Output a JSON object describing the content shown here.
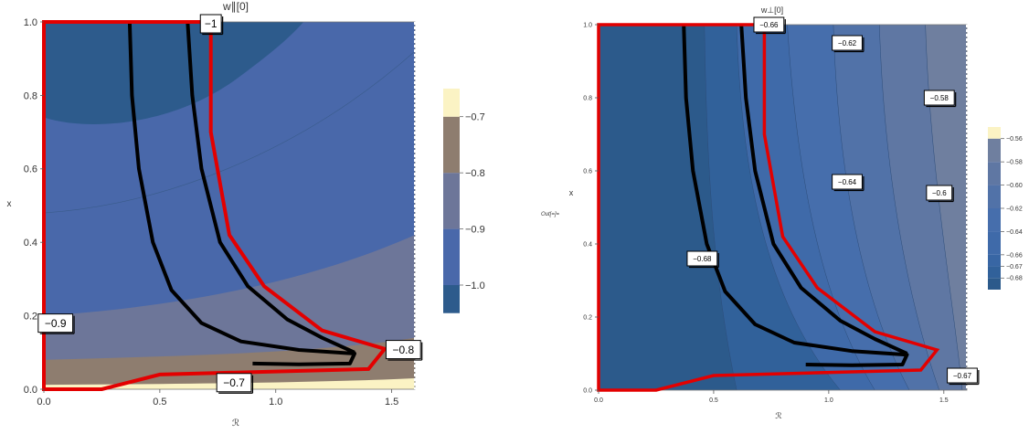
{
  "out_label": "Out[=]=",
  "chart_data": [
    {
      "type": "heatmap",
      "title": "w∥[0]",
      "xlabel": "ℛ",
      "ylabel": "x",
      "xlim": [
        0,
        1.6
      ],
      "ylim": [
        0,
        1.0
      ],
      "xticks": [
        "0.0",
        "0.5",
        "1.0",
        "1.5"
      ],
      "xtick_values": [
        0,
        0.5,
        1.0,
        1.5
      ],
      "yticks": [
        "0.0",
        "0.2",
        "0.4",
        "0.6",
        "0.8",
        "1.0"
      ],
      "ytick_values": [
        0,
        0.2,
        0.4,
        0.6,
        0.8,
        1.0
      ],
      "bands": [
        {
          "from": -1.05,
          "to": -1.0,
          "color": "#2d5b8c"
        },
        {
          "from": -1.0,
          "to": -0.9,
          "color": "#4968aa"
        },
        {
          "from": -0.9,
          "to": -0.8,
          "color": "#6d7699"
        },
        {
          "from": -0.8,
          "to": -0.7,
          "color": "#8e7d6f"
        },
        {
          "from": -0.7,
          "to": -0.65,
          "color": "#fbf3c4"
        }
      ],
      "legend_ticks": [
        "-0.7",
        "-0.8",
        "-0.9",
        "-1.0"
      ],
      "legend_tick_values": [
        -0.7,
        -0.8,
        -0.9,
        -1.0
      ],
      "legend_range": [
        -1.07,
        -0.65
      ],
      "contour_labels": [
        {
          "text": "-1",
          "R": 0.72,
          "x": 0.995
        },
        {
          "text": "-0.9",
          "R": 0.05,
          "x": 0.18
        },
        {
          "text": "-0.8",
          "R": 1.55,
          "x": 0.108
        },
        {
          "text": "-0.7",
          "R": 0.82,
          "x": 0.018
        }
      ],
      "red_region": [
        [
          0,
          0
        ],
        [
          0,
          1.0
        ],
        [
          0.72,
          1.0
        ],
        [
          0.72,
          0.7
        ],
        [
          0.8,
          0.42
        ],
        [
          0.95,
          0.28
        ],
        [
          1.2,
          0.16
        ],
        [
          1.47,
          0.11
        ],
        [
          1.4,
          0.055
        ],
        [
          0.5,
          0.04
        ],
        [
          0.25,
          0.0
        ]
      ],
      "black_curves": [
        [
          [
            0.37,
            1.0
          ],
          [
            0.38,
            0.8
          ],
          [
            0.41,
            0.6
          ],
          [
            0.47,
            0.4
          ],
          [
            0.55,
            0.27
          ],
          [
            0.68,
            0.18
          ],
          [
            0.85,
            0.13
          ],
          [
            1.1,
            0.107
          ],
          [
            1.34,
            0.097
          ],
          [
            1.32,
            0.07
          ],
          [
            1.1,
            0.068
          ],
          [
            0.9,
            0.07
          ]
        ],
        [
          [
            0.62,
            1.0
          ],
          [
            0.64,
            0.8
          ],
          [
            0.68,
            0.6
          ],
          [
            0.76,
            0.4
          ],
          [
            0.88,
            0.28
          ],
          [
            1.05,
            0.19
          ],
          [
            1.2,
            0.14
          ],
          [
            1.34,
            0.1
          ]
        ]
      ]
    },
    {
      "type": "heatmap",
      "title": "w⊥[0]",
      "xlabel": "ℛ",
      "ylabel": "x",
      "xlim": [
        0,
        1.6
      ],
      "ylim": [
        0,
        1.0
      ],
      "xticks": [
        "0.0",
        "0.5",
        "1.0",
        "1.5"
      ],
      "xtick_values": [
        0,
        0.5,
        1.0,
        1.5
      ],
      "yticks": [
        "0.0",
        "0.2",
        "0.4",
        "0.6",
        "0.8",
        "1.0"
      ],
      "ytick_values": [
        0,
        0.2,
        0.4,
        0.6,
        0.8,
        1.0
      ],
      "bands": [
        {
          "from": -0.69,
          "to": -0.68,
          "color": "#2c5a8b"
        },
        {
          "from": -0.68,
          "to": -0.67,
          "color": "#31619a"
        },
        {
          "from": -0.67,
          "to": -0.66,
          "color": "#3866a4"
        },
        {
          "from": -0.66,
          "to": -0.64,
          "color": "#3f6aa9"
        },
        {
          "from": -0.64,
          "to": -0.62,
          "color": "#466eac"
        },
        {
          "from": -0.62,
          "to": -0.6,
          "color": "#5172a8"
        },
        {
          "from": -0.6,
          "to": -0.58,
          "color": "#5f77a3"
        },
        {
          "from": -0.58,
          "to": -0.56,
          "color": "#6f7f9f"
        },
        {
          "from": -0.56,
          "to": -0.55,
          "color": "#fbf3c4"
        }
      ],
      "legend_ticks": [
        "-0.56",
        "-0.58",
        "-0.60",
        "-0.62",
        "-0.64",
        "-0.66",
        "-0.67",
        "-0.68"
      ],
      "legend_tick_values": [
        -0.56,
        -0.58,
        -0.6,
        -0.62,
        -0.64,
        -0.66,
        -0.67,
        -0.68
      ],
      "legend_range": [
        -0.69,
        -0.55
      ],
      "contour_labels": [
        {
          "text": "-0.66",
          "R": 0.74,
          "x": 1.0
        },
        {
          "text": "-0.62",
          "R": 1.08,
          "x": 0.95
        },
        {
          "text": "-0.58",
          "R": 1.48,
          "x": 0.8
        },
        {
          "text": "-0.64",
          "R": 1.08,
          "x": 0.57
        },
        {
          "text": "-0.6",
          "R": 1.48,
          "x": 0.54
        },
        {
          "text": "-0.68",
          "R": 0.45,
          "x": 0.36
        },
        {
          "text": "-0.67",
          "R": 1.58,
          "x": 0.04
        }
      ],
      "red_region": [
        [
          0,
          0
        ],
        [
          0,
          1.0
        ],
        [
          0.72,
          1.0
        ],
        [
          0.72,
          0.7
        ],
        [
          0.8,
          0.42
        ],
        [
          0.95,
          0.28
        ],
        [
          1.2,
          0.16
        ],
        [
          1.47,
          0.11
        ],
        [
          1.4,
          0.055
        ],
        [
          0.5,
          0.04
        ],
        [
          0.25,
          0.0
        ]
      ],
      "black_curves": [
        [
          [
            0.37,
            1.0
          ],
          [
            0.38,
            0.8
          ],
          [
            0.41,
            0.6
          ],
          [
            0.47,
            0.4
          ],
          [
            0.55,
            0.27
          ],
          [
            0.68,
            0.18
          ],
          [
            0.85,
            0.13
          ],
          [
            1.1,
            0.107
          ],
          [
            1.34,
            0.097
          ],
          [
            1.32,
            0.07
          ],
          [
            1.1,
            0.068
          ],
          [
            0.9,
            0.07
          ]
        ],
        [
          [
            0.62,
            1.0
          ],
          [
            0.64,
            0.8
          ],
          [
            0.68,
            0.6
          ],
          [
            0.76,
            0.4
          ],
          [
            0.88,
            0.28
          ],
          [
            1.05,
            0.19
          ],
          [
            1.2,
            0.14
          ],
          [
            1.34,
            0.1
          ]
        ]
      ]
    }
  ]
}
